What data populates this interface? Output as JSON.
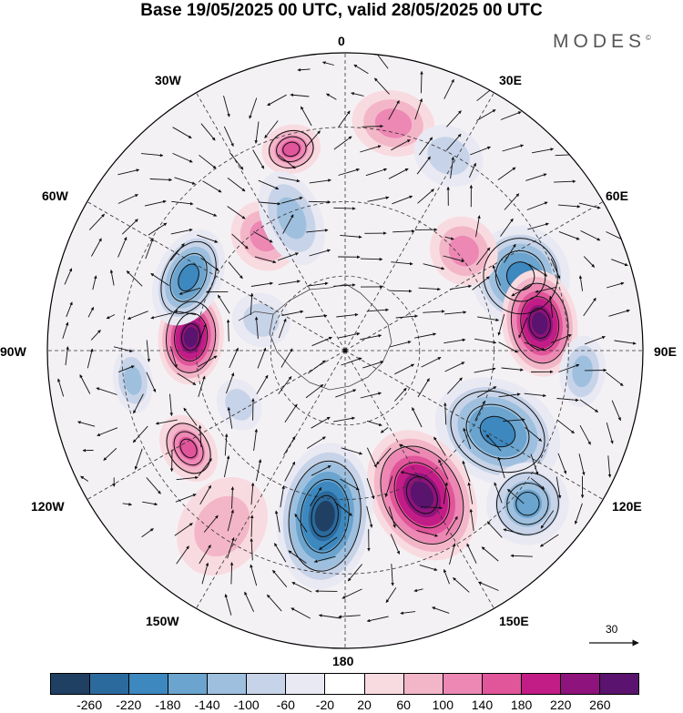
{
  "title": "Base 19/05/2025 00 UTC, valid 28/05/2025 00 UTC",
  "brand": "MODES",
  "brand_mark": "©",
  "longitude_labels": {
    "lon_0": "0",
    "lon_30e": "30E",
    "lon_60e": "60E",
    "lon_90e": "90E",
    "lon_120e": "120E",
    "lon_150e": "150E",
    "lon_180": "180",
    "lon_150w": "150W",
    "lon_120w": "120W",
    "lon_90w": "90W",
    "lon_60w": "60W",
    "lon_30w": "30W"
  },
  "reference_vector": {
    "value": "30"
  },
  "colorbar": {
    "colors": [
      "#1f3f63",
      "#2b6a9d",
      "#3d88bf",
      "#6aa4cf",
      "#9ec0de",
      "#c7d3e8",
      "#e9e9f3",
      "#ffffff",
      "#f8dbe0",
      "#f3b6c9",
      "#ec88b3",
      "#e1559b",
      "#c21d86",
      "#8e137c",
      "#5a136e"
    ],
    "ticks": [
      "-260",
      "-220",
      "-180",
      "-140",
      "-100",
      "-60",
      "-20",
      "20",
      "60",
      "100",
      "140",
      "180",
      "220",
      "260"
    ]
  },
  "anomaly_features": [
    {
      "kind": "anomaly",
      "level": -180,
      "azimuth_deg": 67,
      "radius_frac": 0.64,
      "length_frac": 0.3,
      "width_frac": 0.17
    },
    {
      "kind": "anomaly",
      "level": 260,
      "azimuth_deg": 82,
      "radius_frac": 0.66,
      "length_frac": 0.23,
      "width_frac": 0.18
    },
    {
      "kind": "anomaly",
      "level": -180,
      "azimuth_deg": 118,
      "radius_frac": 0.58,
      "length_frac": 0.4,
      "width_frac": 0.17
    },
    {
      "kind": "anomaly",
      "level": -140,
      "azimuth_deg": 130,
      "radius_frac": 0.8,
      "length_frac": 0.25,
      "width_frac": 0.14
    },
    {
      "kind": "anomaly",
      "level": 260,
      "azimuth_deg": 152,
      "radius_frac": 0.55,
      "length_frac": 0.42,
      "width_frac": 0.17
    },
    {
      "kind": "anomaly",
      "level": -260,
      "azimuth_deg": 187,
      "radius_frac": 0.56,
      "length_frac": 0.45,
      "width_frac": 0.16
    },
    {
      "kind": "anomaly",
      "level": 60,
      "azimuth_deg": 215,
      "radius_frac": 0.72,
      "length_frac": 0.32,
      "width_frac": 0.14
    },
    {
      "kind": "anomaly",
      "level": 140,
      "azimuth_deg": 238,
      "radius_frac": 0.62,
      "length_frac": 0.16,
      "width_frac": 0.12
    },
    {
      "kind": "anomaly",
      "level": -60,
      "azimuth_deg": 243,
      "radius_frac": 0.4,
      "length_frac": 0.13,
      "width_frac": 0.09
    },
    {
      "kind": "anomaly",
      "level": -100,
      "azimuth_deg": 262,
      "radius_frac": 0.72,
      "length_frac": 0.12,
      "width_frac": 0.11
    },
    {
      "kind": "anomaly",
      "level": 260,
      "azimuth_deg": 275,
      "radius_frac": 0.52,
      "length_frac": 0.2,
      "width_frac": 0.16
    },
    {
      "kind": "anomaly",
      "level": -180,
      "azimuth_deg": 295,
      "radius_frac": 0.58,
      "length_frac": 0.2,
      "width_frac": 0.17
    },
    {
      "kind": "anomaly",
      "level": -60,
      "azimuth_deg": 290,
      "radius_frac": 0.3,
      "length_frac": 0.18,
      "width_frac": 0.09
    },
    {
      "kind": "anomaly",
      "level": 100,
      "azimuth_deg": 325,
      "radius_frac": 0.47,
      "length_frac": 0.22,
      "width_frac": 0.11
    },
    {
      "kind": "anomaly",
      "level": 140,
      "azimuth_deg": 345,
      "radius_frac": 0.7,
      "length_frac": 0.15,
      "width_frac": 0.1
    },
    {
      "kind": "anomaly",
      "level": -100,
      "azimuth_deg": 338,
      "radius_frac": 0.48,
      "length_frac": 0.3,
      "width_frac": 0.1
    },
    {
      "kind": "anomaly",
      "level": 100,
      "azimuth_deg": 12,
      "radius_frac": 0.78,
      "length_frac": 0.2,
      "width_frac": 0.14
    },
    {
      "kind": "anomaly",
      "level": -60,
      "azimuth_deg": 28,
      "radius_frac": 0.74,
      "length_frac": 0.18,
      "width_frac": 0.12
    },
    {
      "kind": "anomaly",
      "level": 100,
      "azimuth_deg": 50,
      "radius_frac": 0.52,
      "length_frac": 0.2,
      "width_frac": 0.12
    },
    {
      "kind": "anomaly",
      "level": -100,
      "azimuth_deg": 95,
      "radius_frac": 0.8,
      "length_frac": 0.14,
      "width_frac": 0.12
    }
  ]
}
